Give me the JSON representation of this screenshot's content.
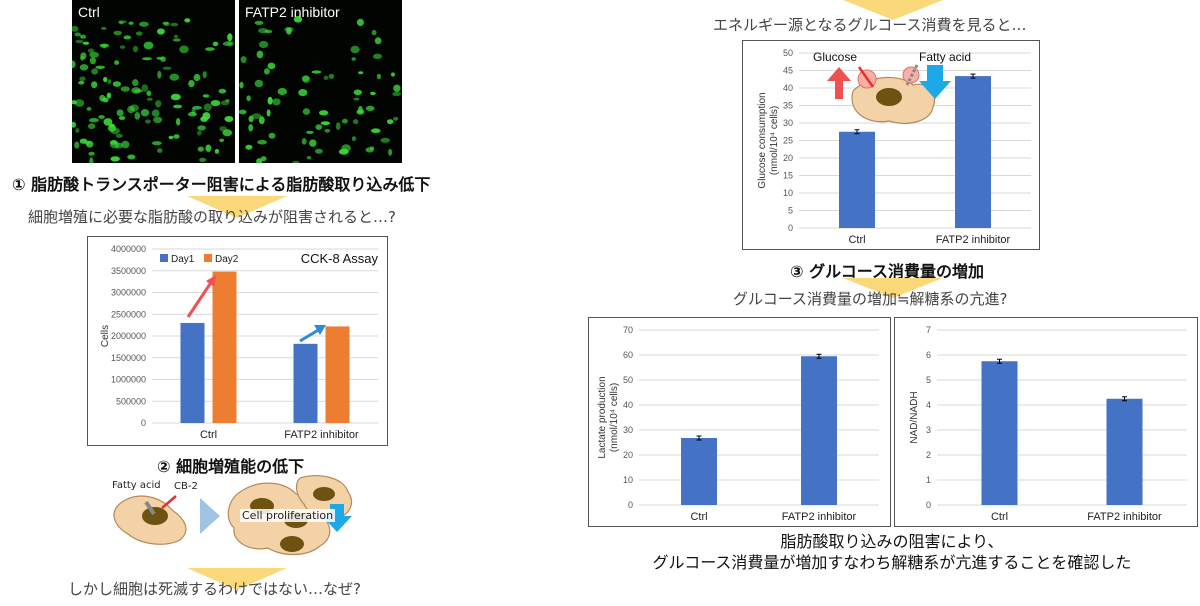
{
  "microscopy": {
    "ctrl_label": "Ctrl",
    "inhibitor_label": "FATP2 inhibitor"
  },
  "captions": {
    "step1": "① 脂肪酸トランスポーター阻害による脂肪酸取り込み低下",
    "question1": "細胞増殖に必要な脂肪酸の取り込みが阻害されると…?",
    "step2": "② 細胞増殖能の低下",
    "question2": "しかし細胞は死滅するわけではない…なぜ?",
    "intro_right": "エネルギー源となるグルコース消費を見ると…",
    "step3": "③ グルコース消費量の増加",
    "question3": "グルコース消費量の増加≒解糖系の亢進?",
    "conclusion_line1": "脂肪酸取り込みの阻害により、",
    "conclusion_line2": "グルコース消費量が増加すなわち解糖系が亢進することを確認した"
  },
  "diagram_labels": {
    "fatty_acid": "Fatty acid",
    "cb2": "CB-2",
    "cell_proliferation": "Cell proliferation",
    "glucose": "Glucose",
    "fatty_acid_top": "Fatty acid"
  },
  "colors": {
    "bar_blue": "#4472c4",
    "bar_orange": "#ed7d31",
    "up_arrow_red": "#f05050",
    "down_arrow_blue": "#1fa8e8",
    "chevron": "#fbd97a",
    "micro_green": "#3ddc3a"
  },
  "chart_data": [
    {
      "id": "cck8",
      "type": "bar",
      "title": "CCK-8 Assay",
      "ylabel": "Cells",
      "xlabel": "",
      "categories": [
        "Ctrl",
        "FATP2  inhibitor"
      ],
      "series": [
        {
          "name": "Day1",
          "values": [
            2300000,
            1820000
          ]
        },
        {
          "name": "Day2",
          "values": [
            3480000,
            2220000
          ]
        }
      ],
      "ylim": [
        0,
        4000000
      ],
      "yticks": [
        "0",
        "500000",
        "1000000",
        "1500000",
        "2000000",
        "2500000",
        "3000000",
        "3500000",
        "4000000"
      ],
      "legend": "top-left",
      "grid": true
    },
    {
      "id": "glucose",
      "type": "bar",
      "title": "",
      "ylabel": "Glucose consumption\n(nmol/10⁴ cells)",
      "categories": [
        "Ctrl",
        "FATP2  inhibitor"
      ],
      "values": [
        27.5,
        43.4
      ],
      "ylim": [
        0,
        50
      ],
      "yticks": [
        "0",
        "5",
        "10",
        "15",
        "20",
        "25",
        "30",
        "35",
        "40",
        "45",
        "50"
      ],
      "grid": true
    },
    {
      "id": "lactate",
      "type": "bar",
      "title": "",
      "ylabel": "Lactate production\n(nmol/10⁴ cells)",
      "categories": [
        "Ctrl",
        "FATP2  inhibitor"
      ],
      "values": [
        26.8,
        59.5
      ],
      "ylim": [
        0,
        70
      ],
      "yticks": [
        "0",
        "10",
        "20",
        "30",
        "40",
        "50",
        "60",
        "70"
      ],
      "grid": true
    },
    {
      "id": "nadnadh",
      "type": "bar",
      "title": "",
      "ylabel": "NAD/NADH",
      "categories": [
        "Ctrl",
        "FATP2  inhibitor"
      ],
      "values": [
        5.75,
        4.25
      ],
      "ylim": [
        0,
        7
      ],
      "yticks": [
        "0",
        "1",
        "2",
        "3",
        "4",
        "5",
        "6",
        "7"
      ],
      "grid": true
    }
  ]
}
